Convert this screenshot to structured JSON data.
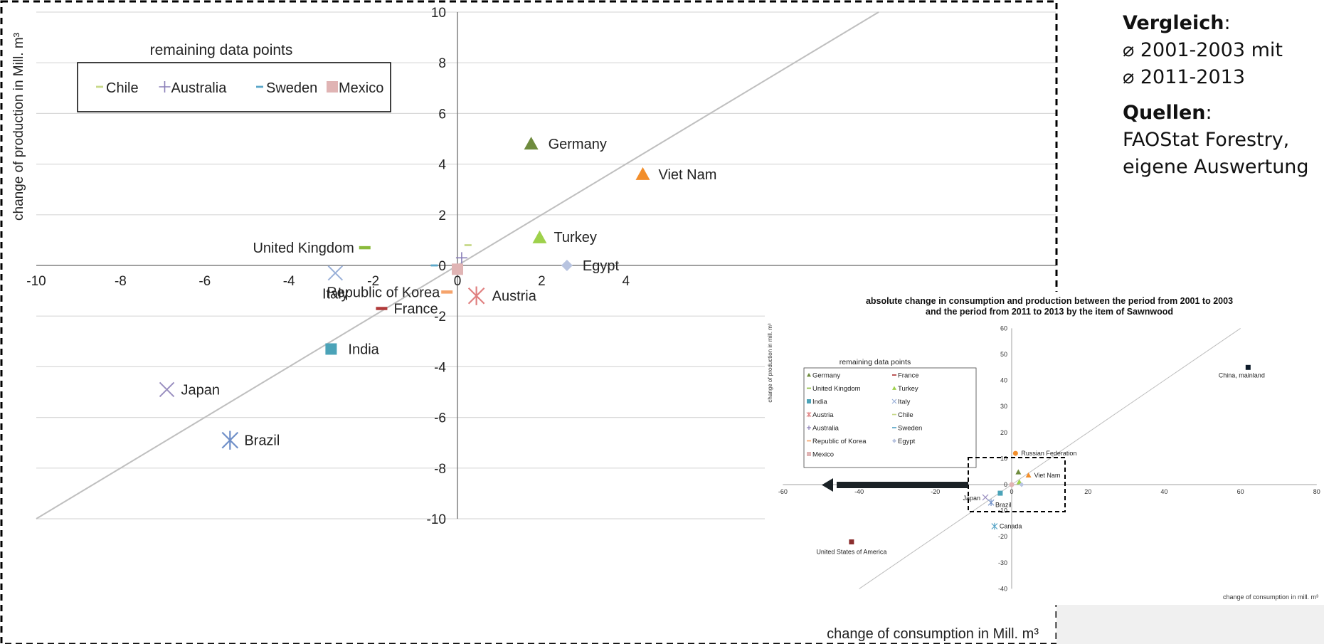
{
  "notes": {
    "heading1": "Vergleich",
    "colon1": ":",
    "line1": "⌀ 2001-2003 mit",
    "line2": "⌀ 2011-2013",
    "heading2": "Quellen",
    "colon2": ":",
    "line3": "FAOStat Forestry,",
    "line4": "eigene Auswertung"
  },
  "colors": {
    "grid": "#d9d9d9",
    "diagonal": "#bfbfbf",
    "frame": "#000000"
  },
  "chart_data": [
    {
      "type": "scatter",
      "title": "",
      "xlabel": "change of consumption in Mill. m³",
      "ylabel": "change of production in Mill. m³",
      "xlim": [
        -10,
        4.5
      ],
      "ylim": [
        -10,
        10
      ],
      "xticks": [
        -10,
        -8,
        -6,
        -4,
        -2,
        0,
        2,
        4
      ],
      "yticks": [
        -10,
        -8,
        -6,
        -4,
        -2,
        0,
        2,
        4,
        6,
        8,
        10
      ],
      "grid": true,
      "diagonal": true,
      "legend_title": "remaining data points",
      "legend": [
        {
          "name": "Chile",
          "marker": "dash",
          "color": "#c8d98a"
        },
        {
          "name": "Australia",
          "marker": "plus",
          "color": "#8a7fb8"
        },
        {
          "name": "Sweden",
          "marker": "dash",
          "color": "#5aa6c8"
        },
        {
          "name": "Mexico",
          "marker": "square",
          "color": "#e0b4b4"
        }
      ],
      "points": [
        {
          "label": "Germany",
          "x": 1.75,
          "y": 4.8,
          "marker": "triangle",
          "color": "#6e8b3d",
          "show_label": true
        },
        {
          "label": "Viet Nam",
          "x": 4.4,
          "y": 3.6,
          "marker": "triangle",
          "color": "#f28e2b",
          "show_label": true
        },
        {
          "label": "Turkey",
          "x": 1.95,
          "y": 1.1,
          "marker": "triangle",
          "color": "#9ed14b",
          "show_label": true
        },
        {
          "label": "Egypt",
          "x": 2.6,
          "y": 0.0,
          "marker": "diamond",
          "color": "#b8c4e0",
          "show_label": true
        },
        {
          "label": "United Kingdom",
          "x": -2.2,
          "y": 0.7,
          "marker": "dash",
          "color": "#8aba3c",
          "show_label": true
        },
        {
          "label": "Italy",
          "x": -2.9,
          "y": -0.3,
          "marker": "x",
          "color": "#9ab0d8",
          "show_label": true
        },
        {
          "label": "Republic of Korea",
          "x": -0.25,
          "y": -1.05,
          "marker": "dash",
          "color": "#f5a36b",
          "show_label": true
        },
        {
          "label": "France",
          "x": -1.8,
          "y": -1.7,
          "marker": "dash",
          "color": "#b03a3a",
          "show_label": true
        },
        {
          "label": "Austria",
          "x": 0.45,
          "y": -1.2,
          "marker": "star",
          "color": "#e08080",
          "show_label": true
        },
        {
          "label": "India",
          "x": -3.0,
          "y": -3.3,
          "marker": "square",
          "color": "#4ba3b8",
          "show_label": true
        },
        {
          "label": "Japan",
          "x": -6.9,
          "y": -4.9,
          "marker": "x",
          "color": "#9a8fc0",
          "show_label": true
        },
        {
          "label": "Brazil",
          "x": -5.4,
          "y": -6.9,
          "marker": "star",
          "color": "#6f8fc8",
          "show_label": true
        },
        {
          "label": "Chile",
          "x": 0.25,
          "y": 0.8,
          "marker": "dash",
          "color": "#c8d98a",
          "show_label": false
        },
        {
          "label": "Australia",
          "x": 0.1,
          "y": 0.3,
          "marker": "plus",
          "color": "#8a7fb8",
          "show_label": false
        },
        {
          "label": "Sweden",
          "x": -0.55,
          "y": 0.0,
          "marker": "dash",
          "color": "#5aa6c8",
          "show_label": false
        },
        {
          "label": "Mexico",
          "x": 0.0,
          "y": -0.15,
          "marker": "square",
          "color": "#e0b4b4",
          "show_label": false
        }
      ]
    },
    {
      "type": "scatter",
      "title": "absolute change in consumption and production between the period from 2001 to 2003 and the period from 2011 to 2013 by the item of Sawnwood",
      "title_line1": "absolute change in consumption and production between the period from 2001 to 2003",
      "title_line2": "and the period from 2011 to 2013 by the item of Sawnwood",
      "xlabel": "change of consumption in mill. m³",
      "ylabel": "change of production in mill. m³",
      "xlim": [
        -60,
        80
      ],
      "ylim": [
        -40,
        60
      ],
      "xticks": [
        -60,
        -40,
        -20,
        0,
        20,
        40,
        60,
        80
      ],
      "yticks": [
        -40,
        -30,
        -20,
        -10,
        0,
        10,
        20,
        30,
        40,
        50,
        60
      ],
      "grid": false,
      "diagonal": true,
      "legend_title": "remaining data points",
      "legend": [
        {
          "name": "Germany",
          "marker": "triangle",
          "color": "#6e8b3d"
        },
        {
          "name": "France",
          "marker": "dash",
          "color": "#b03a3a"
        },
        {
          "name": "United Kingdom",
          "marker": "dash",
          "color": "#8aba3c"
        },
        {
          "name": "Turkey",
          "marker": "triangle",
          "color": "#9ed14b"
        },
        {
          "name": "India",
          "marker": "square",
          "color": "#4ba3b8"
        },
        {
          "name": "Italy",
          "marker": "x",
          "color": "#9ab0d8"
        },
        {
          "name": "Austria",
          "marker": "star",
          "color": "#e08080"
        },
        {
          "name": "Chile",
          "marker": "dash",
          "color": "#c8d98a"
        },
        {
          "name": "Australia",
          "marker": "plus",
          "color": "#8a7fb8"
        },
        {
          "name": "Sweden",
          "marker": "dash",
          "color": "#5aa6c8"
        },
        {
          "name": "Republic of Korea",
          "marker": "dash",
          "color": "#f5a36b"
        },
        {
          "name": "Egypt",
          "marker": "diamond",
          "color": "#b8c4e0"
        },
        {
          "name": "Mexico",
          "marker": "square",
          "color": "#e0b4b4"
        }
      ],
      "points": [
        {
          "label": "China, mainland",
          "x": 62,
          "y": 45,
          "marker": "square",
          "color": "#0d1b2a",
          "show_label": true
        },
        {
          "label": "Russian Federation",
          "x": 1,
          "y": 12,
          "marker": "circle",
          "color": "#f28e2b",
          "show_label": true
        },
        {
          "label": "Viet Nam",
          "x": 4.4,
          "y": 3.6,
          "marker": "triangle",
          "color": "#f28e2b",
          "show_label": true
        },
        {
          "label": "Japan",
          "x": -6.9,
          "y": -4.9,
          "marker": "x",
          "color": "#9a8fc0",
          "show_label": true
        },
        {
          "label": "Brazil",
          "x": -5.4,
          "y": -6.9,
          "marker": "star",
          "color": "#6f8fc8",
          "show_label": true
        },
        {
          "label": "Canada",
          "x": -4.5,
          "y": -16,
          "marker": "star",
          "color": "#5aa6c8",
          "show_label": true
        },
        {
          "label": "United States of America",
          "x": -42,
          "y": -22,
          "marker": "square",
          "color": "#8b2e2e",
          "show_label": true
        },
        {
          "label": "Germany",
          "x": 1.75,
          "y": 4.8,
          "marker": "triangle",
          "color": "#6e8b3d",
          "show_label": false
        },
        {
          "label": "Turkey",
          "x": 2,
          "y": 1,
          "marker": "triangle",
          "color": "#9ed14b",
          "show_label": false
        },
        {
          "label": "India",
          "x": -3,
          "y": -3.3,
          "marker": "square",
          "color": "#4ba3b8",
          "show_label": false
        },
        {
          "label": "Mexico",
          "x": 0,
          "y": 0,
          "marker": "circle",
          "color": "#e0b4b4",
          "show_label": false
        },
        {
          "label": "Egypt",
          "x": 2.6,
          "y": 0,
          "marker": "diamond",
          "color": "#b8c4e0",
          "show_label": false
        }
      ]
    }
  ]
}
